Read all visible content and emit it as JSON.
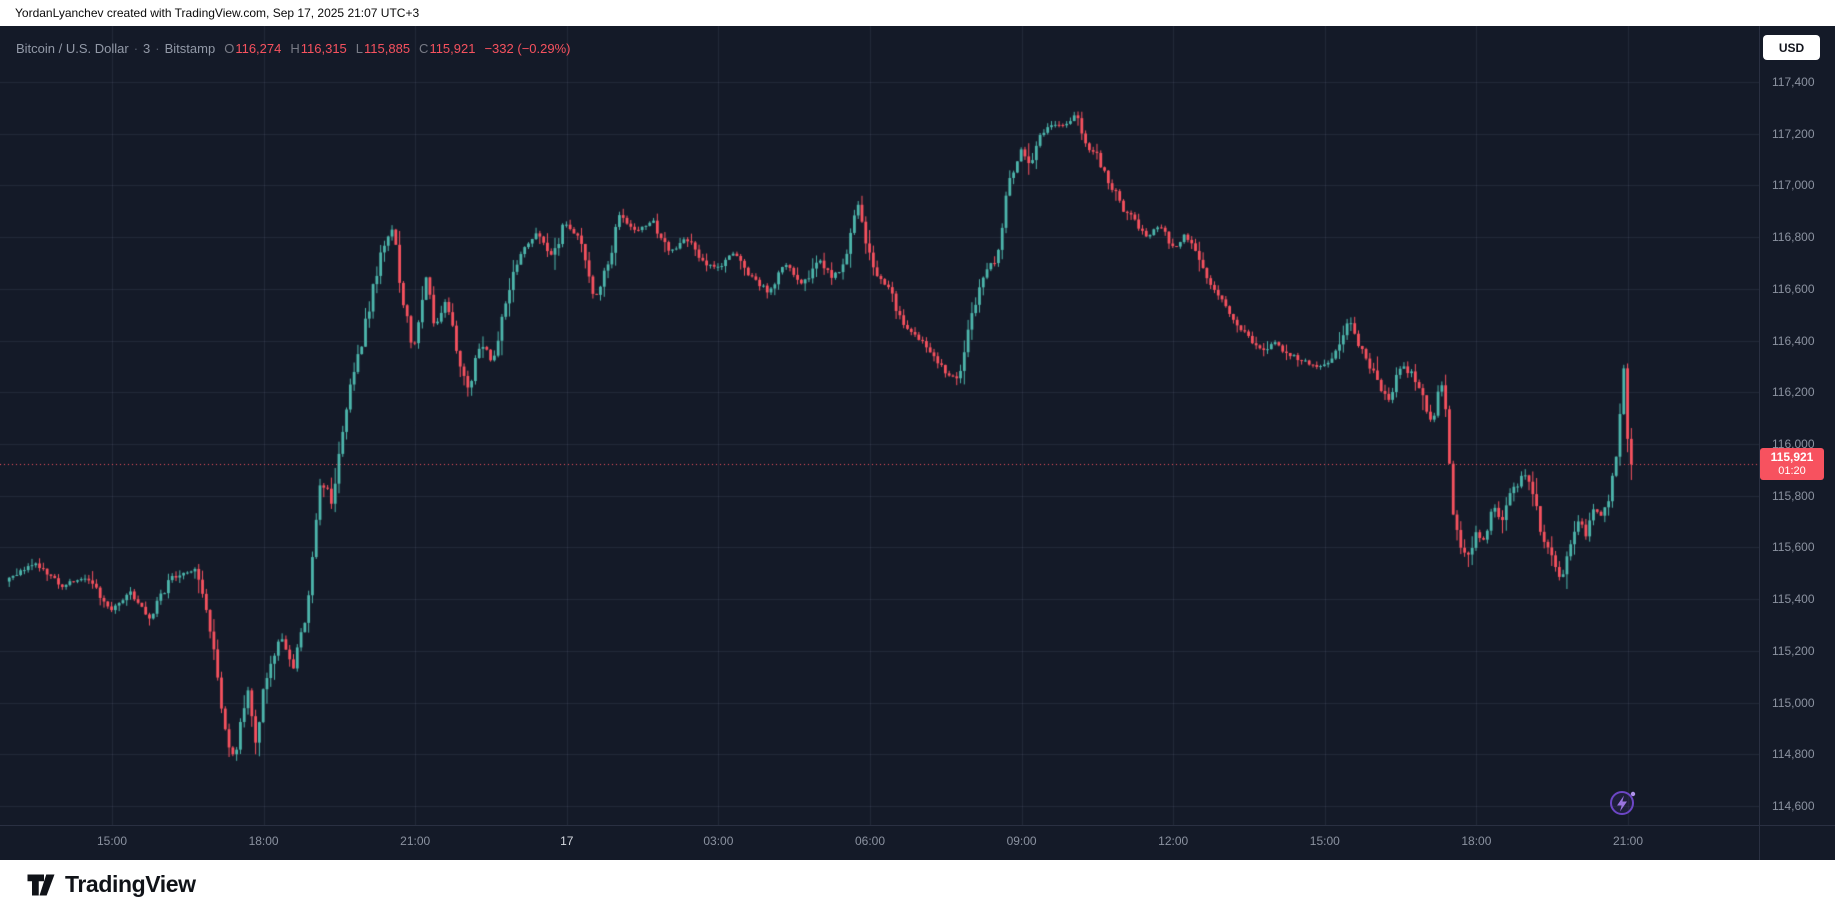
{
  "attribution": "YordanLyanchev created with TradingView.com, Sep 17, 2025 21:07 UTC+3",
  "legend": {
    "symbol": "Bitcoin / U.S. Dollar",
    "separator": "·",
    "interval": "3",
    "exchange": "Bitstamp",
    "ohlc": [
      {
        "label": "O",
        "value": "116,274"
      },
      {
        "label": "H",
        "value": "116,315"
      },
      {
        "label": "L",
        "value": "115,885"
      },
      {
        "label": "C",
        "value": "115,921"
      }
    ],
    "change": "−332 (−0.29%)"
  },
  "currency_button": "USD",
  "last_price": {
    "value": 115921,
    "display": "115,921",
    "countdown": "01:20"
  },
  "footer": {
    "brand": "TradingView"
  },
  "colors": {
    "bg": "#141a28",
    "grid": "rgba(170,180,205,0.10)",
    "frame": "#2a3042",
    "up": "#4db6ac",
    "down": "#f7525f",
    "axis-text": "#8b92a0",
    "emphasis-text": "#d6d9e0",
    "title-text": "#9299a7",
    "label-text": "#787b86"
  },
  "chart_data": {
    "type": "candlestick",
    "title": "Bitcoin / U.S. Dollar · 3 · Bitstamp",
    "symbol": "BTCUSD",
    "exchange": "Bitstamp",
    "interval_minutes": 3,
    "grid": true,
    "legend_position": "top-left",
    "ohlc_current": {
      "open": 116274,
      "high": 116315,
      "low": 115885,
      "close": 115921,
      "change": -332,
      "change_pct": -0.29
    },
    "visible_price_range": [
      114530,
      117620
    ],
    "time_span": "Sep 16 ~13:00 UTC+3 to Sep 17 21:07 UTC+3",
    "y_ticks": [
      {
        "label": "117,400",
        "value": 117400
      },
      {
        "label": "117,200",
        "value": 117200
      },
      {
        "label": "117,000",
        "value": 117000
      },
      {
        "label": "116,800",
        "value": 116800
      },
      {
        "label": "116,600",
        "value": 116600
      },
      {
        "label": "116,400",
        "value": 116400
      },
      {
        "label": "116,200",
        "value": 116200
      },
      {
        "label": "116,000",
        "value": 116000
      },
      {
        "label": "115,800",
        "value": 115800
      },
      {
        "label": "115,600",
        "value": 115600
      },
      {
        "label": "115,400",
        "value": 115400
      },
      {
        "label": "115,200",
        "value": 115200
      },
      {
        "label": "115,000",
        "value": 115000
      },
      {
        "label": "114,800",
        "value": 114800
      },
      {
        "label": "114,600",
        "value": 114600
      }
    ],
    "x_ticks": [
      {
        "label": "15:00",
        "minute": 900
      },
      {
        "label": "18:00",
        "minute": 1080
      },
      {
        "label": "21:00",
        "minute": 1260
      },
      {
        "label": "17",
        "minute": 1440,
        "emphasis": true
      },
      {
        "label": "03:00",
        "minute": 1620
      },
      {
        "label": "06:00",
        "minute": 1800
      },
      {
        "label": "09:00",
        "minute": 1980
      },
      {
        "label": "12:00",
        "minute": 2160
      },
      {
        "label": "15:00",
        "minute": 2340
      },
      {
        "label": "18:00",
        "minute": 2520
      },
      {
        "label": "21:00",
        "minute": 2700
      }
    ],
    "path_note": "sampled close-price path; x = minutes since Sep 16 00:00 (UTC+3), Sep 17 = +1440",
    "path": [
      [
        778,
        115480
      ],
      [
        810,
        115540
      ],
      [
        840,
        115450
      ],
      [
        870,
        115490
      ],
      [
        900,
        115350
      ],
      [
        920,
        115430
      ],
      [
        945,
        115330
      ],
      [
        970,
        115480
      ],
      [
        1000,
        115520
      ],
      [
        1020,
        115250
      ],
      [
        1030,
        114950
      ],
      [
        1045,
        114780
      ],
      [
        1060,
        115050
      ],
      [
        1070,
        114860
      ],
      [
        1085,
        115120
      ],
      [
        1100,
        115260
      ],
      [
        1115,
        115140
      ],
      [
        1130,
        115330
      ],
      [
        1148,
        115860
      ],
      [
        1162,
        115780
      ],
      [
        1178,
        116150
      ],
      [
        1195,
        116380
      ],
      [
        1215,
        116680
      ],
      [
        1232,
        116860
      ],
      [
        1246,
        116550
      ],
      [
        1258,
        116350
      ],
      [
        1272,
        116650
      ],
      [
        1283,
        116460
      ],
      [
        1297,
        116560
      ],
      [
        1312,
        116310
      ],
      [
        1324,
        116210
      ],
      [
        1338,
        116400
      ],
      [
        1352,
        116310
      ],
      [
        1368,
        116560
      ],
      [
        1386,
        116740
      ],
      [
        1406,
        116820
      ],
      [
        1424,
        116720
      ],
      [
        1437,
        116870
      ],
      [
        1458,
        116780
      ],
      [
        1472,
        116560
      ],
      [
        1488,
        116680
      ],
      [
        1502,
        116900
      ],
      [
        1522,
        116820
      ],
      [
        1542,
        116860
      ],
      [
        1562,
        116740
      ],
      [
        1582,
        116800
      ],
      [
        1602,
        116700
      ],
      [
        1620,
        116680
      ],
      [
        1640,
        116740
      ],
      [
        1660,
        116640
      ],
      [
        1680,
        116590
      ],
      [
        1700,
        116700
      ],
      [
        1720,
        116610
      ],
      [
        1740,
        116710
      ],
      [
        1755,
        116650
      ],
      [
        1770,
        116690
      ],
      [
        1785,
        116940
      ],
      [
        1795,
        116760
      ],
      [
        1810,
        116650
      ],
      [
        1825,
        116580
      ],
      [
        1840,
        116460
      ],
      [
        1860,
        116400
      ],
      [
        1880,
        116310
      ],
      [
        1905,
        116240
      ],
      [
        1920,
        116480
      ],
      [
        1935,
        116660
      ],
      [
        1950,
        116720
      ],
      [
        1965,
        117010
      ],
      [
        1980,
        117140
      ],
      [
        1990,
        117060
      ],
      [
        2000,
        117190
      ],
      [
        2015,
        117240
      ],
      [
        2030,
        117230
      ],
      [
        2045,
        117270
      ],
      [
        2055,
        117160
      ],
      [
        2070,
        117110
      ],
      [
        2085,
        117010
      ],
      [
        2100,
        116910
      ],
      [
        2115,
        116860
      ],
      [
        2130,
        116800
      ],
      [
        2145,
        116850
      ],
      [
        2160,
        116760
      ],
      [
        2175,
        116810
      ],
      [
        2190,
        116720
      ],
      [
        2205,
        116610
      ],
      [
        2220,
        116550
      ],
      [
        2235,
        116460
      ],
      [
        2250,
        116410
      ],
      [
        2265,
        116360
      ],
      [
        2280,
        116390
      ],
      [
        2295,
        116350
      ],
      [
        2310,
        116330
      ],
      [
        2325,
        116300
      ],
      [
        2340,
        116300
      ],
      [
        2355,
        116360
      ],
      [
        2370,
        116490
      ],
      [
        2385,
        116350
      ],
      [
        2400,
        116260
      ],
      [
        2415,
        116160
      ],
      [
        2430,
        116300
      ],
      [
        2445,
        116270
      ],
      [
        2460,
        116160
      ],
      [
        2467,
        116050
      ],
      [
        2475,
        116230
      ],
      [
        2483,
        116190
      ],
      [
        2490,
        115780
      ],
      [
        2500,
        115610
      ],
      [
        2510,
        115560
      ],
      [
        2520,
        115660
      ],
      [
        2530,
        115610
      ],
      [
        2540,
        115760
      ],
      [
        2550,
        115700
      ],
      [
        2560,
        115810
      ],
      [
        2570,
        115850
      ],
      [
        2580,
        115900
      ],
      [
        2590,
        115760
      ],
      [
        2600,
        115620
      ],
      [
        2610,
        115560
      ],
      [
        2620,
        115460
      ],
      [
        2630,
        115610
      ],
      [
        2640,
        115710
      ],
      [
        2650,
        115660
      ],
      [
        2660,
        115760
      ],
      [
        2670,
        115710
      ],
      [
        2680,
        115820
      ],
      [
        2690,
        116080
      ],
      [
        2695,
        116270
      ],
      [
        2700,
        115990
      ],
      [
        2707,
        115921
      ]
    ]
  }
}
